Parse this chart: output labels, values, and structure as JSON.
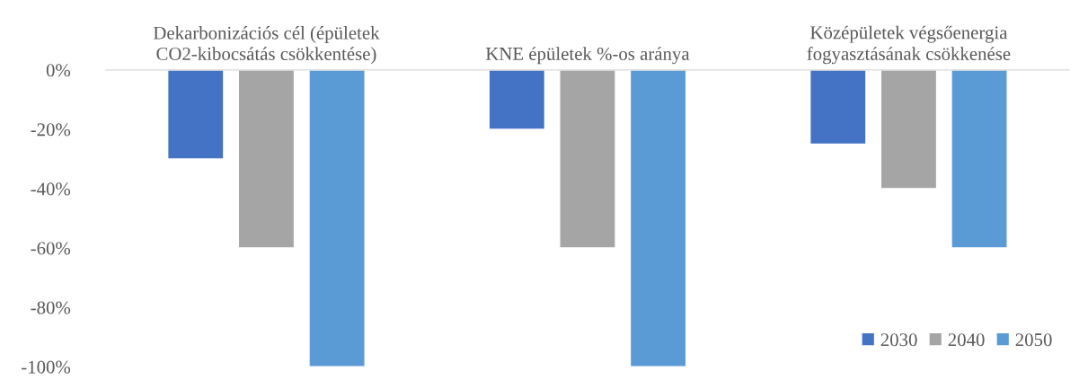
{
  "chart_data": {
    "type": "bar",
    "categories": [
      "Dekarbonizációs cél (épületek CO2-kibocsátás csökkentése)",
      "KNE épületek %-os aránya",
      "Középületek végsőenergia fogyasztásának csökkenése"
    ],
    "series": [
      {
        "name": "2030",
        "color": "#4472c4",
        "values": [
          -30,
          -20,
          -25
        ]
      },
      {
        "name": "2040",
        "color": "#a5a5a5",
        "values": [
          -60,
          -60,
          -40
        ]
      },
      {
        "name": "2050",
        "color": "#5b9bd5",
        "values": [
          -100,
          -100,
          -60
        ]
      }
    ],
    "ylim": [
      -100,
      0
    ],
    "yticks": [
      {
        "value": 0,
        "label": "0%"
      },
      {
        "value": -20,
        "label": "-20%"
      },
      {
        "value": -40,
        "label": "-40%"
      },
      {
        "value": -60,
        "label": "-60%"
      },
      {
        "value": -80,
        "label": "-80%"
      },
      {
        "value": -100,
        "label": "-100%"
      }
    ],
    "grid": false,
    "legend": "bottom right"
  }
}
